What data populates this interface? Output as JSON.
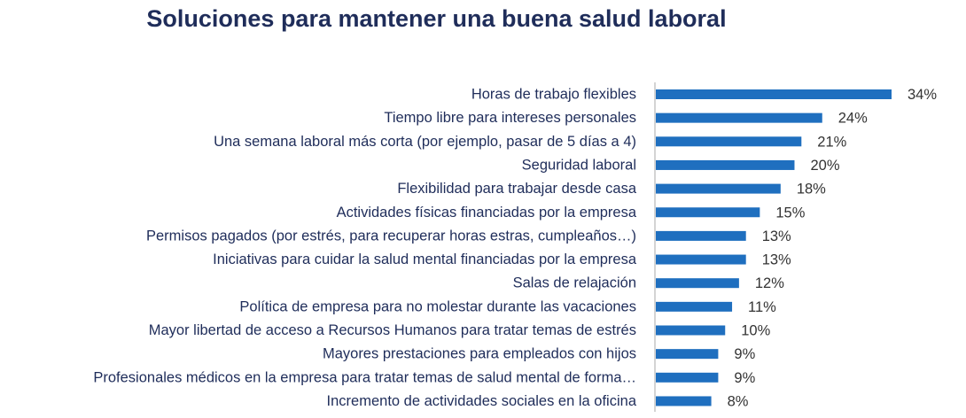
{
  "chart_data": {
    "type": "bar",
    "orientation": "horizontal",
    "title": "Soluciones para mantener una buena salud laboral",
    "categories": [
      "Horas de trabajo flexibles",
      "Tiempo libre para intereses personales",
      "Una semana laboral más corta (por ejemplo, pasar de 5 días a 4)",
      "Seguridad laboral",
      "Flexibilidad para trabajar desde casa",
      "Actividades físicas financiadas por la empresa",
      "Permisos pagados (por estrés, para recuperar horas estras, cumpleaños…)",
      "Iniciativas para cuidar la salud mental financiadas por la empresa",
      "Salas de relajación",
      "Política de empresa para no molestar durante las vacaciones",
      "Mayor libertad de acceso a Recursos Humanos para tratar temas de estrés",
      "Mayores prestaciones para empleados con hijos",
      "Profesionales médicos en la empresa para tratar temas de salud mental de forma…",
      "Incremento de actividades sociales en la oficina"
    ],
    "values": [
      34,
      24,
      21,
      20,
      18,
      15,
      13,
      13,
      12,
      11,
      10,
      9,
      9,
      8
    ],
    "value_labels": [
      "34%",
      "24%",
      "21%",
      "20%",
      "18%",
      "15%",
      "13%",
      "13%",
      "12%",
      "11%",
      "10%",
      "9%",
      "9%",
      "8%"
    ],
    "xlim": [
      0,
      34
    ],
    "grid": false,
    "legend": "none",
    "colors": {
      "bar": "#1f6fbf",
      "title": "#1f2d5a",
      "category_text": "#1f2d5a",
      "value_text": "#333333",
      "axis": "#aaaaaa"
    }
  }
}
